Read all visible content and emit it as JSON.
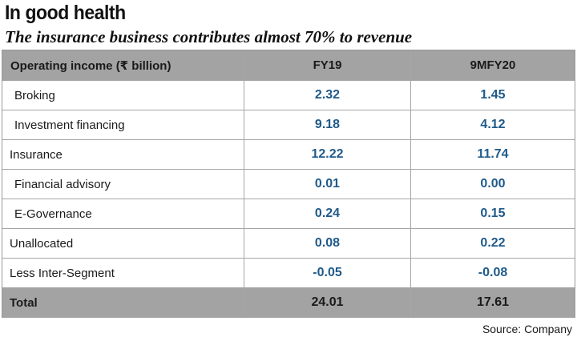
{
  "title": "In good health",
  "subtitle": "The insurance business contributes almost 70% to revenue",
  "source": "Source: Company",
  "chart_data": {
    "type": "table",
    "columns": [
      "Operating income (₹ billion)",
      "FY19",
      "9MFY20"
    ],
    "rows": [
      {
        "label": "Broking",
        "indent": true,
        "FY19": "2.32",
        "9MFY20": "1.45"
      },
      {
        "label": "Investment financing",
        "indent": true,
        "FY19": "9.18",
        "9MFY20": "4.12"
      },
      {
        "label": "Insurance",
        "indent": false,
        "FY19": "12.22",
        "9MFY20": "11.74"
      },
      {
        "label": "Financial advisory",
        "indent": true,
        "FY19": "0.01",
        "9MFY20": "0.00"
      },
      {
        "label": "E-Governance",
        "indent": true,
        "FY19": "0.24",
        "9MFY20": "0.15"
      },
      {
        "label": "Unallocated",
        "indent": false,
        "FY19": "0.08",
        "9MFY20": "0.22"
      },
      {
        "label": "Less Inter-Segment",
        "indent": false,
        "FY19": "-0.05",
        "9MFY20": "-0.08"
      }
    ],
    "total": {
      "label": "Total",
      "FY19": "24.01",
      "9MFY20": "17.61"
    },
    "colors": {
      "header_bg": "#a3a3a3",
      "value_text": "#1f5a8a"
    }
  }
}
